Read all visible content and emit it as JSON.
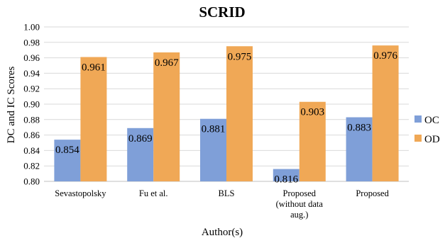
{
  "chart_data": {
    "type": "bar",
    "title": "SCRID",
    "xlabel": "Author(s)",
    "ylabel": "DC and IC Scores",
    "ylim": [
      0.8,
      1.0
    ],
    "yticks": [
      "0.80",
      "0.82",
      "0.84",
      "0.86",
      "0.88",
      "0.90",
      "0.92",
      "0.94",
      "0.96",
      "0.98",
      "1.00"
    ],
    "categories": [
      [
        "Sevastopolsky"
      ],
      [
        "Fu et al."
      ],
      [
        "BLS"
      ],
      [
        "Proposed",
        "(without data",
        "aug.)"
      ],
      [
        "Proposed"
      ]
    ],
    "series": [
      {
        "name": "OC",
        "color": "#7f9fd8",
        "values": [
          0.854,
          0.869,
          0.881,
          0.816,
          0.883
        ],
        "labels": [
          "0.854",
          "0.869",
          "0.881",
          "0.816",
          "0.883"
        ]
      },
      {
        "name": "OD",
        "color": "#f0a856",
        "values": [
          0.961,
          0.967,
          0.975,
          0.903,
          0.976
        ],
        "labels": [
          "0.961",
          "0.967",
          "0.975",
          "0.903",
          "0.976"
        ]
      }
    ],
    "grid": true,
    "legend": "right"
  }
}
